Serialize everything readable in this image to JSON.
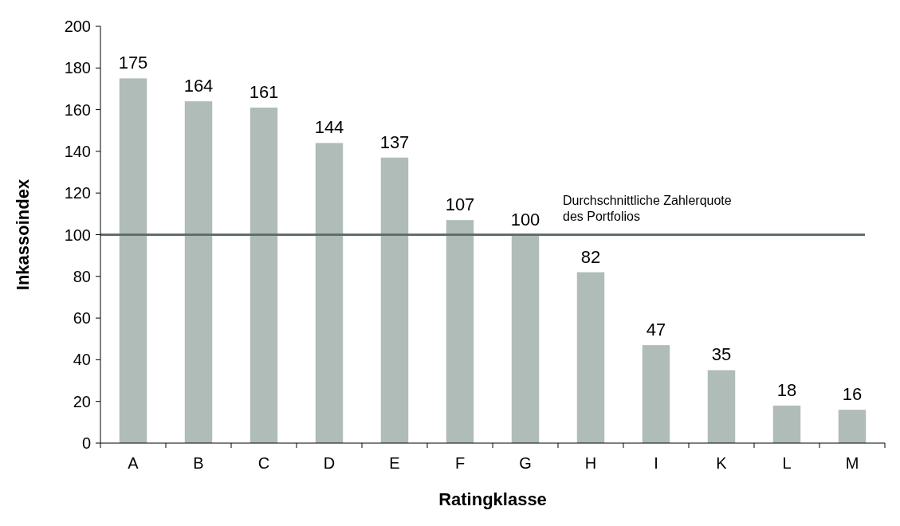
{
  "chart_data": {
    "type": "bar",
    "xlabel": "Ratingklasse",
    "ylabel": "Inkassoindex",
    "categories": [
      "A",
      "B",
      "C",
      "D",
      "E",
      "F",
      "G",
      "H",
      "I",
      "K",
      "L",
      "M"
    ],
    "values": [
      175,
      164,
      161,
      144,
      137,
      107,
      100,
      82,
      47,
      35,
      18,
      16
    ],
    "color": "#afbcb7",
    "ylim": [
      0,
      200
    ],
    "yticks": [
      0,
      20,
      40,
      60,
      80,
      100,
      120,
      140,
      160,
      180,
      200
    ],
    "data_labels": true,
    "grid": false,
    "ref_lines": [
      {
        "axis": "y",
        "value": 100,
        "label": "Durchschnittliche Zahlerquote\ndes Portfolios",
        "color": "#5f6f6b"
      }
    ]
  }
}
